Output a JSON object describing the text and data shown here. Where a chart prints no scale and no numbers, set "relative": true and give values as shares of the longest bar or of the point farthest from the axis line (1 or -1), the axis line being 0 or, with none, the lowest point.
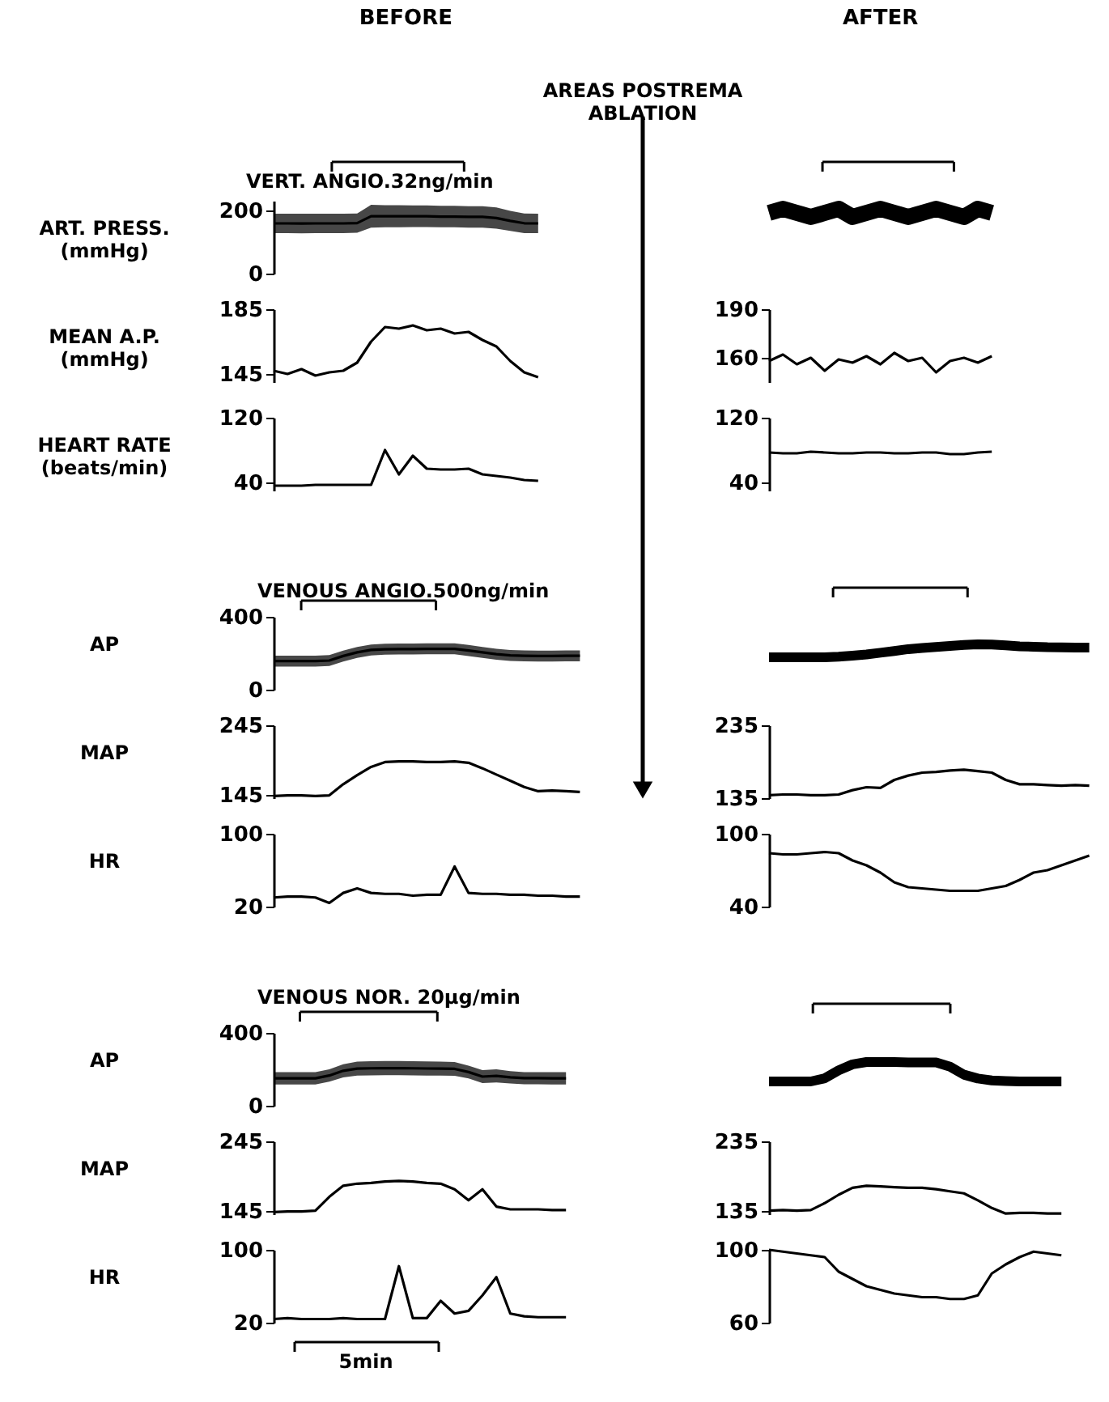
{
  "chart_data": [
    {
      "type": "line",
      "title": "BEFORE",
      "subtitle": "VERT. ANGIO.32ng/min",
      "ylabel": "ART. PRESS.\n(mmHg)",
      "annotations": [
        "AREAS POSTREMA\nABLATION"
      ],
      "categories": [
        null,
        null,
        null,
        null,
        null,
        null,
        null,
        null,
        null,
        null,
        null,
        null,
        null,
        null,
        null,
        null,
        null,
        null,
        null,
        null
      ],
      "ylim": [
        0,
        230
      ],
      "yticks": [
        0,
        200
      ],
      "tick_labels": "y",
      "series": [
        {
          "color": "#000000",
          "values": [
            158.5,
            158.5,
            158,
            158.5,
            158.5,
            158.5,
            159.5,
            181,
            181,
            181,
            181,
            181,
            180,
            180,
            179,
            179,
            175.5,
            166.5,
            159,
            158.5
          ],
          "lower": [
            128,
            128,
            127,
            128,
            128,
            128,
            129,
            145,
            146,
            146,
            147,
            147,
            146,
            146,
            145,
            145,
            142,
            135,
            128,
            128
          ],
          "upper": [
            189,
            189,
            189,
            189,
            189,
            189,
            190,
            217,
            216,
            216,
            215,
            215,
            214,
            214,
            213,
            213,
            209,
            198,
            190,
            189
          ]
        }
      ]
    },
    {
      "type": "line",
      "ylabel": "MEAN A.P.\n(mmHg)",
      "categories": [
        null,
        null,
        null,
        null,
        null,
        null,
        null,
        null,
        null,
        null,
        null,
        null,
        null,
        null,
        null,
        null,
        null,
        null,
        null,
        null
      ],
      "ylim": [
        140,
        185
      ],
      "yticks": [
        145,
        185
      ],
      "tick_labels": "y",
      "series": [
        {
          "color": "#000000",
          "values": [
            147,
            145,
            148,
            144,
            146,
            147,
            152,
            165,
            174,
            173,
            175,
            172,
            173,
            170,
            171,
            166,
            162,
            153,
            146,
            143
          ]
        }
      ]
    },
    {
      "type": "line",
      "ylabel": "HEART RATE\n(beats/min)",
      "categories": [
        null,
        null,
        null,
        null,
        null,
        null,
        null,
        null,
        null,
        null,
        null,
        null,
        null,
        null,
        null,
        null,
        null,
        null,
        null,
        null
      ],
      "ylim": [
        30,
        120
      ],
      "yticks": [
        40,
        120
      ],
      "tick_labels": "y",
      "series": [
        {
          "color": "#000000",
          "values": [
            36,
            36,
            36,
            37,
            37,
            37,
            37,
            37,
            80,
            50,
            73,
            57,
            56,
            56,
            57,
            50,
            48,
            46,
            43,
            42
          ]
        }
      ]
    },
    {
      "type": "line",
      "title": "AFTER",
      "categories": [
        null,
        null,
        null,
        null,
        null,
        null,
        null,
        null,
        null,
        null,
        null,
        null,
        null,
        null,
        null,
        null,
        null
      ],
      "relative": true,
      "tick_labels": false,
      "series": [
        {
          "color": "#000000",
          "values": [
            0.5,
            1,
            0.5,
            0,
            0.5,
            1,
            0,
            0.5,
            1,
            0.5,
            0,
            0.5,
            1,
            0.5,
            0,
            1,
            0.5
          ]
        }
      ]
    },
    {
      "type": "line",
      "categories": [
        null,
        null,
        null,
        null,
        null,
        null,
        null,
        null,
        null,
        null,
        null,
        null,
        null,
        null,
        null,
        null,
        null
      ],
      "ylim": [
        145,
        190
      ],
      "yticks": [
        160,
        190
      ],
      "tick_labels": "y",
      "series": [
        {
          "color": "#000000",
          "values": [
            158,
            162,
            156,
            160,
            152,
            159,
            157,
            161,
            156,
            163,
            158,
            160,
            151,
            158,
            160,
            157,
            161
          ]
        }
      ]
    },
    {
      "type": "line",
      "categories": [
        null,
        null,
        null,
        null,
        null,
        null,
        null,
        null,
        null,
        null,
        null,
        null,
        null,
        null,
        null,
        null,
        null
      ],
      "ylim": [
        30,
        120
      ],
      "yticks": [
        40,
        120
      ],
      "tick_labels": "y",
      "series": [
        {
          "color": "#000000",
          "values": [
            77,
            76,
            76,
            78,
            77,
            76,
            76,
            77,
            77,
            76,
            76,
            77,
            77,
            75,
            75,
            77,
            78
          ]
        }
      ]
    },
    {
      "type": "line",
      "title": "VENOUS ANGIO.500ng/min",
      "ylabel": "AP",
      "categories": [
        null,
        null,
        null,
        null,
        null,
        null,
        null,
        null,
        null,
        null,
        null,
        null,
        null,
        null,
        null,
        null,
        null,
        null,
        null,
        null,
        null,
        null,
        null
      ],
      "ylim": [
        0,
        400
      ],
      "yticks": [
        0,
        400
      ],
      "tick_labels": "y",
      "series": [
        {
          "color": "#000000",
          "values": [
            157,
            157,
            157,
            157,
            160,
            185,
            205,
            218,
            222,
            223,
            223,
            224,
            224,
            224,
            215,
            205,
            195,
            188,
            186,
            185,
            185,
            186,
            186
          ],
          "lower": [
            127,
            127,
            127,
            127,
            130,
            155,
            175,
            188,
            192,
            193,
            193,
            194,
            194,
            194,
            185,
            175,
            165,
            158,
            156,
            155,
            155,
            156,
            156
          ],
          "upper": [
            187,
            187,
            187,
            187,
            190,
            215,
            235,
            248,
            252,
            253,
            253,
            254,
            254,
            254,
            245,
            235,
            225,
            218,
            216,
            215,
            215,
            216,
            216
          ]
        }
      ]
    },
    {
      "type": "line",
      "ylabel": "MAP",
      "categories": [
        null,
        null,
        null,
        null,
        null,
        null,
        null,
        null,
        null,
        null,
        null,
        null,
        null,
        null,
        null,
        null,
        null,
        null,
        null,
        null,
        null,
        null,
        null
      ],
      "ylim": [
        140,
        245
      ],
      "yticks": [
        145,
        245
      ],
      "tick_labels": "y",
      "series": [
        {
          "color": "#000000",
          "values": [
            143,
            144,
            144,
            143,
            144,
            160,
            173,
            185,
            192,
            193,
            193,
            192,
            192,
            193,
            191,
            183,
            174,
            165,
            156,
            150,
            151,
            150,
            149
          ]
        }
      ]
    },
    {
      "type": "line",
      "ylabel": "HR",
      "categories": [
        null,
        null,
        null,
        null,
        null,
        null,
        null,
        null,
        null,
        null,
        null,
        null,
        null,
        null,
        null,
        null,
        null,
        null,
        null,
        null,
        null,
        null,
        null
      ],
      "ylim": [
        20,
        100
      ],
      "yticks": [
        20,
        100
      ],
      "tick_labels": "y",
      "series": [
        {
          "color": "#000000",
          "values": [
            30,
            31,
            31,
            30,
            24,
            35,
            40,
            35,
            34,
            34,
            32,
            33,
            33,
            64,
            35,
            34,
            34,
            33,
            33,
            32,
            32,
            31,
            31
          ]
        }
      ]
    },
    {
      "type": "line",
      "categories": [
        null,
        null,
        null,
        null,
        null,
        null,
        null,
        null,
        null,
        null,
        null,
        null,
        null,
        null,
        null,
        null,
        null,
        null,
        null,
        null,
        null,
        null,
        null,
        null
      ],
      "relative": true,
      "tick_labels": false,
      "series": [
        {
          "color": "#000000",
          "values": [
            0,
            0,
            0,
            0,
            0,
            0.05,
            0.13,
            0.22,
            0.35,
            0.48,
            0.63,
            0.72,
            0.8,
            0.88,
            0.95,
            1,
            0.98,
            0.92,
            0.85,
            0.82,
            0.78,
            0.77,
            0.75,
            0.75
          ]
        }
      ]
    },
    {
      "type": "line",
      "categories": [
        null,
        null,
        null,
        null,
        null,
        null,
        null,
        null,
        null,
        null,
        null,
        null,
        null,
        null,
        null,
        null,
        null,
        null,
        null,
        null,
        null,
        null,
        null,
        null
      ],
      "ylim": [
        135,
        235
      ],
      "yticks": [
        135,
        235
      ],
      "tick_labels": "y",
      "series": [
        {
          "color": "#000000",
          "values": [
            139,
            140,
            140,
            139,
            139,
            140,
            146,
            150,
            149,
            160,
            166,
            170,
            171,
            173,
            174,
            172,
            170,
            160,
            154,
            154,
            153,
            152,
            153,
            152
          ]
        }
      ]
    },
    {
      "type": "line",
      "categories": [
        null,
        null,
        null,
        null,
        null,
        null,
        null,
        null,
        null,
        null,
        null,
        null,
        null,
        null,
        null,
        null,
        null,
        null,
        null,
        null,
        null,
        null,
        null,
        null
      ],
      "ylim": [
        40,
        100
      ],
      "yticks": [
        40,
        100
      ],
      "tick_labels": "y",
      "series": [
        {
          "color": "#000000",
          "values": [
            84,
            83,
            83,
            84,
            85,
            84,
            78,
            74,
            68,
            60,
            56,
            55,
            54,
            53,
            53,
            53,
            55,
            57,
            62,
            68,
            70,
            74,
            78,
            82
          ]
        }
      ]
    },
    {
      "type": "line",
      "title": "VENOUS NOR. 20μg/min",
      "ylabel": "AP",
      "categories": [
        null,
        null,
        null,
        null,
        null,
        null,
        null,
        null,
        null,
        null,
        null,
        null,
        null,
        null,
        null,
        null,
        null,
        null,
        null,
        null,
        null,
        null
      ],
      "ylim": [
        0,
        400
      ],
      "yticks": [
        0,
        400
      ],
      "tick_labels": "y",
      "series": [
        {
          "color": "#000000",
          "values": [
            150.5,
            150.5,
            150.5,
            150.5,
            166,
            192,
            204,
            205.5,
            206.5,
            206.5,
            205.5,
            204.5,
            204,
            202.5,
            185,
            160,
            164,
            156,
            151.5,
            151.5,
            150.5,
            150.5
          ],
          "lower": [
            117,
            117,
            117,
            117,
            132,
            156,
            166,
            167,
            168,
            168,
            167,
            166,
            166,
            165,
            150,
            125,
            128,
            122,
            118,
            118,
            117,
            117
          ],
          "upper": [
            184,
            184,
            184,
            184,
            200,
            228,
            242,
            244,
            245,
            245,
            244,
            243,
            242,
            240,
            220,
            195,
            200,
            190,
            185,
            185,
            184,
            184
          ]
        }
      ]
    },
    {
      "type": "line",
      "ylabel": "MAP",
      "categories": [
        null,
        null,
        null,
        null,
        null,
        null,
        null,
        null,
        null,
        null,
        null,
        null,
        null,
        null,
        null,
        null,
        null,
        null,
        null,
        null,
        null,
        null
      ],
      "ylim": [
        140,
        245
      ],
      "yticks": [
        145,
        245
      ],
      "tick_labels": "y",
      "series": [
        {
          "color": "#000000",
          "values": [
            143,
            144,
            144,
            145,
            165,
            181,
            184,
            185,
            187,
            188,
            187,
            185,
            184,
            176,
            160,
            176,
            151,
            147,
            147,
            147,
            146,
            146
          ]
        }
      ]
    },
    {
      "type": "line",
      "ylabel": "HR",
      "annotations": [
        "5min"
      ],
      "categories": [
        null,
        null,
        null,
        null,
        null,
        null,
        null,
        null,
        null,
        null,
        null,
        null,
        null,
        null,
        null,
        null,
        null,
        null,
        null,
        null,
        null,
        null
      ],
      "ylim": [
        20,
        100
      ],
      "yticks": [
        20,
        100
      ],
      "tick_labels": "y",
      "series": [
        {
          "color": "#000000",
          "values": [
            24,
            25,
            24,
            24,
            24,
            25,
            24,
            24,
            24,
            82,
            25,
            25,
            44,
            30,
            33,
            50,
            70,
            30,
            27,
            26,
            26,
            26
          ]
        }
      ]
    },
    {
      "type": "line",
      "categories": [
        null,
        null,
        null,
        null,
        null,
        null,
        null,
        null,
        null,
        null,
        null,
        null,
        null,
        null,
        null,
        null,
        null,
        null,
        null,
        null,
        null,
        null
      ],
      "relative": true,
      "tick_labels": false,
      "series": [
        {
          "color": "#000000",
          "values": [
            0,
            0,
            0,
            0,
            0.16,
            0.57,
            0.88,
            1,
            1,
            1,
            0.98,
            0.98,
            0.98,
            0.76,
            0.35,
            0.15,
            0.05,
            0.02,
            0,
            0,
            0,
            0
          ]
        }
      ]
    },
    {
      "type": "line",
      "categories": [
        null,
        null,
        null,
        null,
        null,
        null,
        null,
        null,
        null,
        null,
        null,
        null,
        null,
        null,
        null,
        null,
        null,
        null,
        null,
        null,
        null,
        null
      ],
      "ylim": [
        130,
        235
      ],
      "yticks": [
        135,
        235
      ],
      "tick_labels": "y",
      "series": [
        {
          "color": "#000000",
          "values": [
            135,
            136,
            135,
            136,
            146,
            158,
            168,
            171,
            170,
            169,
            168,
            168,
            166,
            163,
            160,
            150,
            139,
            131,
            132,
            132,
            131,
            131
          ]
        }
      ]
    },
    {
      "type": "line",
      "categories": [
        null,
        null,
        null,
        null,
        null,
        null,
        null,
        null,
        null,
        null,
        null,
        null,
        null,
        null,
        null,
        null,
        null,
        null,
        null,
        null,
        null,
        null
      ],
      "ylim": [
        60,
        100
      ],
      "yticks": [
        60,
        100
      ],
      "tick_labels": "y",
      "series": [
        {
          "color": "#000000",
          "values": [
            100,
            99,
            98,
            97,
            96,
            88,
            84,
            80,
            78,
            76,
            75,
            74,
            74,
            73,
            73,
            75,
            87,
            92,
            96,
            99,
            98,
            97
          ]
        }
      ]
    }
  ]
}
